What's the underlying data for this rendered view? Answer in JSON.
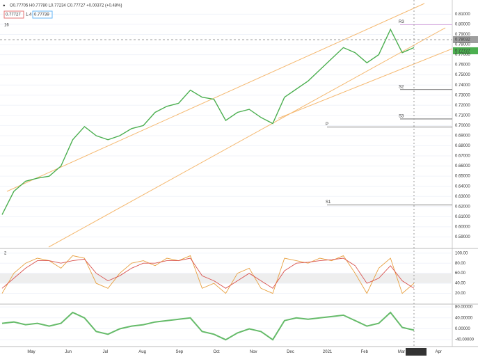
{
  "chart_data": {
    "type": "line",
    "legend_text": {
      "ohlc": "O0.77705 H0.77780 L0.77234 C0.77727 +0.00372 (+0.48%)",
      "bid": "0.77727",
      "spread": "1.4",
      "ask": "0.77739",
      "interval": "16"
    },
    "price_labels": {
      "marker": "0.78032",
      "last": "0.77727"
    },
    "pivots": [
      {
        "label": "R3",
        "value": 0.7995
      },
      {
        "label": "S2",
        "value": 0.7355
      },
      {
        "label": "S3",
        "value": 0.7065
      },
      {
        "label": "P",
        "value": 0.6985
      },
      {
        "label": "S1",
        "value": 0.6215
      }
    ],
    "x_labels": [
      "May",
      "Jun",
      "Jul",
      "Aug",
      "Sep",
      "Oct",
      "Nov",
      "Dec",
      "2021",
      "Feb",
      "Mar",
      "Apr"
    ],
    "current_date": "15 Mar '21",
    "series": [
      {
        "color": "#4caf50",
        "values": [
          0.612,
          0.635,
          0.645,
          0.648,
          0.65,
          0.66,
          0.686,
          0.699,
          0.69,
          0.686,
          0.69,
          0.697,
          0.7,
          0.713,
          0.719,
          0.722,
          0.735,
          0.728,
          0.726,
          0.705,
          0.713,
          0.716,
          0.708,
          0.702,
          0.728,
          0.736,
          0.744,
          0.755,
          0.766,
          0.777,
          0.772,
          0.762,
          0.77,
          0.795,
          0.772,
          0.777
        ]
      }
    ],
    "ylim": [
      0.58,
      0.824
    ],
    "yticks": [
      {
        "value": 0.59,
        "label": "0.59000"
      },
      {
        "value": 0.6,
        "label": "0.60000"
      },
      {
        "value": 0.61,
        "label": "0.61000"
      },
      {
        "value": 0.62,
        "label": "0.62000"
      },
      {
        "value": 0.63,
        "label": "0.63000"
      },
      {
        "value": 0.64,
        "label": "0.64000"
      },
      {
        "value": 0.65,
        "label": "0.65000"
      },
      {
        "value": 0.66,
        "label": "0.66000"
      },
      {
        "value": 0.67,
        "label": "0.67000"
      },
      {
        "value": 0.68,
        "label": "0.68000"
      },
      {
        "value": 0.69,
        "label": "0.69000"
      },
      {
        "value": 0.7,
        "label": "0.70000"
      },
      {
        "value": 0.71,
        "label": "0.71000"
      },
      {
        "value": 0.72,
        "label": "0.72000"
      },
      {
        "value": 0.73,
        "label": "0.73000"
      },
      {
        "value": 0.74,
        "label": "0.74000"
      },
      {
        "value": 0.75,
        "label": "0.75000"
      },
      {
        "value": 0.76,
        "label": "0.76000"
      },
      {
        "value": 0.77,
        "label": "0.77000"
      },
      {
        "value": 0.78,
        "label": "0.78000"
      },
      {
        "value": 0.79,
        "label": "0.79000"
      },
      {
        "value": 0.8,
        "label": "0.80000"
      },
      {
        "value": 0.81,
        "label": "0.81000"
      }
    ],
    "stochastic": {
      "label": "2",
      "ylim": [
        0,
        108
      ],
      "yticks": [
        {
          "value": 20,
          "label": "20.00"
        },
        {
          "value": 40,
          "label": "40.00"
        },
        {
          "value": 60,
          "label": "60.00"
        },
        {
          "value": 80,
          "label": "80.00"
        },
        {
          "value": 100,
          "label": "100.00"
        }
      ],
      "series": [
        {
          "color": "#e8a040",
          "values": [
            20,
            60,
            80,
            90,
            85,
            70,
            95,
            90,
            40,
            30,
            60,
            80,
            85,
            75,
            90,
            85,
            95,
            30,
            40,
            20,
            60,
            70,
            30,
            20,
            90,
            85,
            80,
            90,
            85,
            95,
            60,
            20,
            70,
            90,
            20,
            40
          ]
        },
        {
          "color": "#d9534f",
          "values": [
            30,
            50,
            70,
            85,
            85,
            80,
            85,
            88,
            60,
            45,
            55,
            70,
            80,
            80,
            85,
            85,
            90,
            55,
            45,
            30,
            45,
            60,
            45,
            30,
            65,
            80,
            82,
            85,
            87,
            90,
            75,
            40,
            50,
            75,
            45,
            30
          ]
        }
      ]
    },
    "oscillator": {
      "ylim": [
        -60,
        88
      ],
      "yticks": [
        {
          "value": -40,
          "label": "-40.00000"
        },
        {
          "value": 0,
          "label": "0.00000"
        },
        {
          "value": 40,
          "label": "40.00000"
        },
        {
          "value": 80,
          "label": "80.00000"
        }
      ],
      "series": [
        {
          "color": "#66bb6a",
          "values": [
            20,
            25,
            15,
            20,
            10,
            20,
            60,
            40,
            -10,
            -20,
            0,
            10,
            15,
            25,
            30,
            35,
            40,
            -10,
            -20,
            -40,
            -15,
            0,
            -10,
            -40,
            30,
            40,
            35,
            40,
            45,
            50,
            30,
            10,
            20,
            60,
            5,
            -5
          ]
        }
      ]
    }
  }
}
